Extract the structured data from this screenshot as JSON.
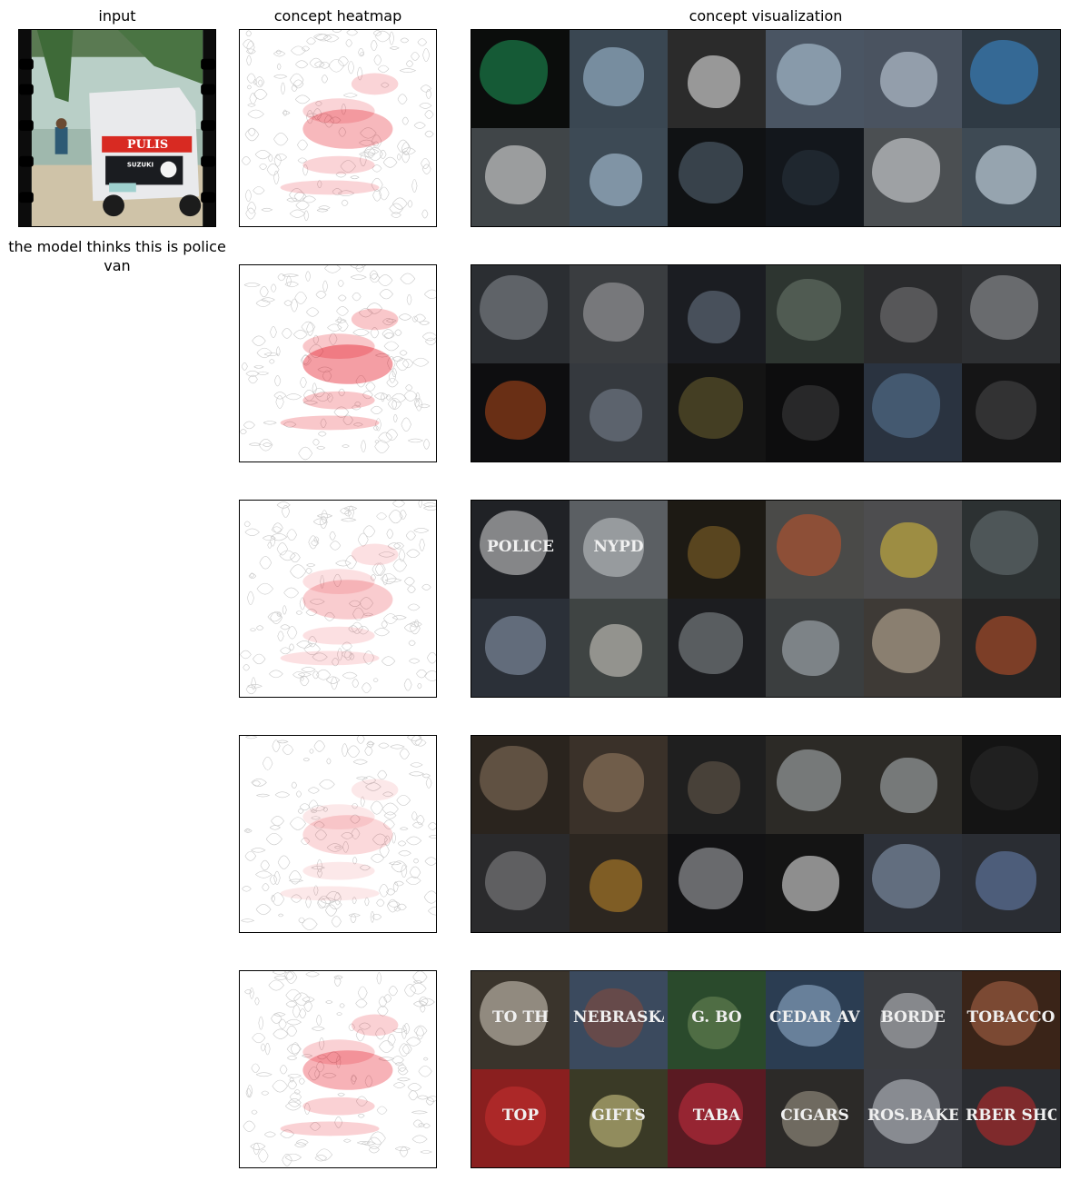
{
  "headers": {
    "input": "input",
    "heatmap": "concept heatmap",
    "visualization": "concept visualization"
  },
  "prediction_caption": "the model thinks this is police van",
  "input_image": {
    "sign_text": "PULIS",
    "brand_text": "SUZUKI"
  },
  "colors": {
    "heat": "#e3000f",
    "frame": "#000000"
  },
  "concepts": [
    {
      "heat_level": 0.55,
      "tiles": [
        {
          "bg": "#0b0d0c",
          "blob": "#1f9b5a",
          "text": ""
        },
        {
          "bg": "#3a4752",
          "blob": "#a9c6de",
          "text": ""
        },
        {
          "bg": "#2b2b2b",
          "blob": "#f2f2f2",
          "text": ""
        },
        {
          "bg": "#4a5563",
          "blob": "#bcd3e6",
          "text": ""
        },
        {
          "bg": "#4a5360",
          "blob": "#cfdde9",
          "text": ""
        },
        {
          "bg": "#2f3a44",
          "blob": "#3b8fd8",
          "text": ""
        },
        {
          "bg": "#404548",
          "blob": "#e6e6e6",
          "text": ""
        },
        {
          "bg": "#3d4a55",
          "blob": "#b8d2e8",
          "text": ""
        },
        {
          "bg": "#101214",
          "blob": "#5a6a78",
          "text": ""
        },
        {
          "bg": "#13171c",
          "blob": "#2a3440",
          "text": ""
        },
        {
          "bg": "#4b4f52",
          "blob": "#e3e6e8",
          "text": ""
        },
        {
          "bg": "#3e4a54",
          "blob": "#dfeefa",
          "text": ""
        }
      ]
    },
    {
      "heat_level": 0.75,
      "tiles": [
        {
          "bg": "#2b2e32",
          "blob": "#8a8f95",
          "text": ""
        },
        {
          "bg": "#3a3d40",
          "blob": "#a9aaab",
          "text": ""
        },
        {
          "bg": "#1b1d22",
          "blob": "#6d7a8a",
          "text": ""
        },
        {
          "bg": "#2d3530",
          "blob": "#6e7a70",
          "text": ""
        },
        {
          "bg": "#2a2b2d",
          "blob": "#7b7c7e",
          "text": ""
        },
        {
          "bg": "#2e3033",
          "blob": "#9b9c9e",
          "text": ""
        },
        {
          "bg": "#0e0e10",
          "blob": "#b44a1a",
          "text": ""
        },
        {
          "bg": "#35393e",
          "blob": "#7b8794",
          "text": ""
        },
        {
          "bg": "#141414",
          "blob": "#6b6030",
          "text": ""
        },
        {
          "bg": "#0d0d0e",
          "blob": "#404040",
          "text": ""
        },
        {
          "bg": "#2a3340",
          "blob": "#5a7897",
          "text": ""
        },
        {
          "bg": "#151516",
          "blob": "#4a4a4c",
          "text": ""
        }
      ]
    },
    {
      "heat_level": 0.4,
      "tiles": [
        {
          "bg": "#202226",
          "blob": "#d9d9d9",
          "text": "POLICE"
        },
        {
          "bg": "#5b5f63",
          "blob": "#c8cccf",
          "text": "NYPD"
        },
        {
          "bg": "#1d1a14",
          "blob": "#8a6a28",
          "text": ""
        },
        {
          "bg": "#4a4a48",
          "blob": "#c4532a",
          "text": ""
        },
        {
          "bg": "#4d4d4f",
          "blob": "#e0c23a",
          "text": ""
        },
        {
          "bg": "#2c3132",
          "blob": "#6b7478",
          "text": ""
        },
        {
          "bg": "#2b3038",
          "blob": "#8f9fb2",
          "text": ""
        },
        {
          "bg": "#3f4443",
          "blob": "#d8d6cc",
          "text": ""
        },
        {
          "bg": "#1c1d20",
          "blob": "#8d9296",
          "text": ""
        },
        {
          "bg": "#3b3e3f",
          "blob": "#b5bcc2",
          "text": ""
        },
        {
          "bg": "#3e3a36",
          "blob": "#c9b8a0",
          "text": ""
        },
        {
          "bg": "#242424",
          "blob": "#c4532a",
          "text": ""
        }
      ]
    },
    {
      "heat_level": 0.3,
      "tiles": [
        {
          "bg": "#2a241e",
          "blob": "#8c7660",
          "text": ""
        },
        {
          "bg": "#3a3129",
          "blob": "#9c8266",
          "text": ""
        },
        {
          "bg": "#1f1f1f",
          "blob": "#6a5c4e",
          "text": ""
        },
        {
          "bg": "#2c2a26",
          "blob": "#b5b9be",
          "text": ""
        },
        {
          "bg": "#2c2a26",
          "blob": "#b5b9be",
          "text": ""
        },
        {
          "bg": "#141414",
          "blob": "#2a2a2a",
          "text": ""
        },
        {
          "bg": "#2a2a2c",
          "blob": "#8a8b8e",
          "text": ""
        },
        {
          "bg": "#2c2620",
          "blob": "#c48a2a",
          "text": ""
        },
        {
          "bg": "#121214",
          "blob": "#b0b2b6",
          "text": ""
        },
        {
          "bg": "#141414",
          "blob": "#f2f2f2",
          "text": ""
        },
        {
          "bg": "#2c3038",
          "blob": "#8fa2ba",
          "text": ""
        },
        {
          "bg": "#2a2d33",
          "blob": "#6a85b5",
          "text": ""
        }
      ]
    },
    {
      "heat_level": 0.6,
      "tiles": [
        {
          "bg": "#3a342c",
          "blob": "#d8d2c4",
          "text": "TO TH"
        },
        {
          "bg": "#3b4a5e",
          "blob": "#8a4a3a",
          "text": "NEBRASKA"
        },
        {
          "bg": "#2a4a2c",
          "blob": "#6d8a5a",
          "text": "G. BO"
        },
        {
          "bg": "#2b3d52",
          "blob": "#9ab8d6",
          "text": "CEDAR AVE"
        },
        {
          "bg": "#3a3c40",
          "blob": "#c4c6ca",
          "text": "BORDE"
        },
        {
          "bg": "#3a2418",
          "blob": "#b0684a",
          "text": "TOBACCO"
        },
        {
          "bg": "#8a1f1f",
          "blob": "#c83030",
          "text": "TOP"
        },
        {
          "bg": "#3a3a26",
          "blob": "#d8d08a",
          "text": "GIFTS"
        },
        {
          "bg": "#5a1a22",
          "blob": "#c83040",
          "text": "TABA"
        },
        {
          "bg": "#2c2a28",
          "blob": "#a89e8e",
          "text": "CIGARS"
        },
        {
          "bg": "#3a3c42",
          "blob": "#c8ccd4",
          "text": "ROS.BAKERY"
        },
        {
          "bg": "#2a2c30",
          "blob": "#c42a2a",
          "text": "RBER SHOP"
        }
      ]
    }
  ]
}
